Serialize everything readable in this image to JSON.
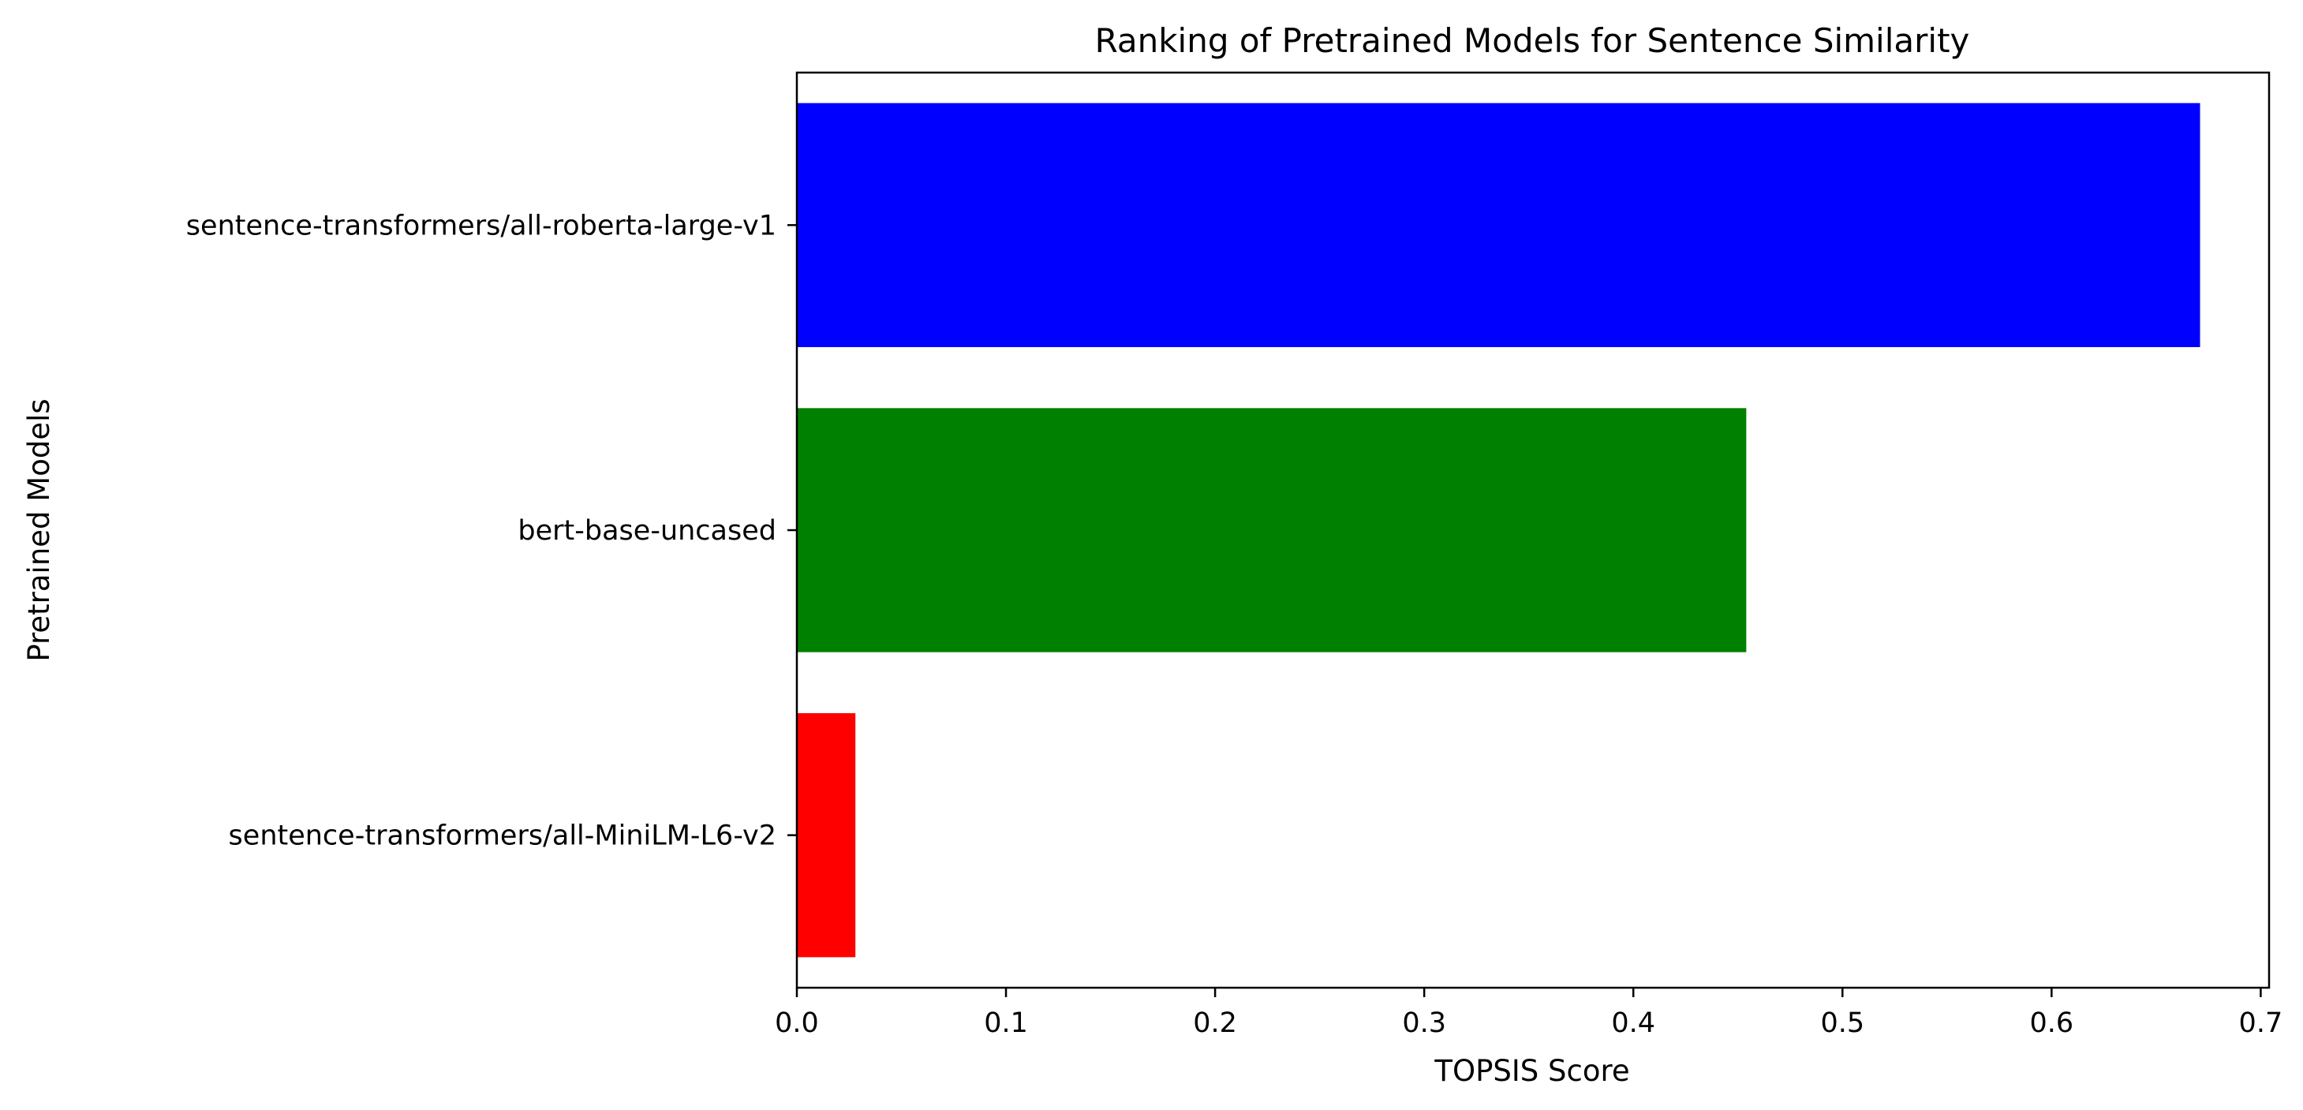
{
  "chart_data": {
    "type": "bar",
    "orientation": "horizontal",
    "title": "Ranking of Pretrained Models for Sentence Similarity",
    "xlabel": "TOPSIS Score",
    "ylabel": "Pretrained Models",
    "categories": [
      "sentence-transformers/all-roberta-large-v1",
      "bert-base-uncased",
      "sentence-transformers/all-MiniLM-L6-v2"
    ],
    "values": [
      0.671,
      0.454,
      0.028
    ],
    "colors": [
      "#0000ff",
      "#008000",
      "#ff0000"
    ],
    "xlim": [
      0,
      0.704
    ],
    "xticks": [
      "0.0",
      "0.1",
      "0.2",
      "0.3",
      "0.4",
      "0.5",
      "0.6",
      "0.7"
    ],
    "grid": false,
    "legend": null
  }
}
